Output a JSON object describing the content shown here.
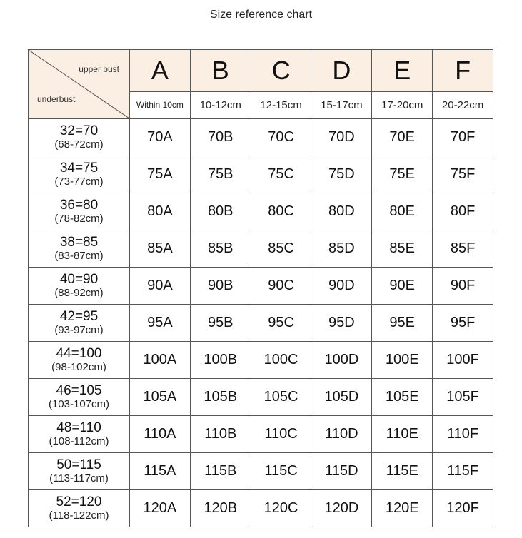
{
  "title": "Size reference chart",
  "corner": {
    "upper_label": "upper bust",
    "under_label": "underbust"
  },
  "columns": [
    {
      "letter": "A",
      "range": "Within 10cm"
    },
    {
      "letter": "B",
      "range": "10-12cm"
    },
    {
      "letter": "C",
      "range": "12-15cm"
    },
    {
      "letter": "D",
      "range": "15-17cm"
    },
    {
      "letter": "E",
      "range": "17-20cm"
    },
    {
      "letter": "F",
      "range": "20-22cm"
    }
  ],
  "rows": [
    {
      "size": "32=70",
      "range": "(68-72cm)",
      "cells": [
        "70A",
        "70B",
        "70C",
        "70D",
        "70E",
        "70F"
      ]
    },
    {
      "size": "34=75",
      "range": "(73-77cm)",
      "cells": [
        "75A",
        "75B",
        "75C",
        "75D",
        "75E",
        "75F"
      ]
    },
    {
      "size": "36=80",
      "range": "(78-82cm)",
      "cells": [
        "80A",
        "80B",
        "80C",
        "80D",
        "80E",
        "80F"
      ]
    },
    {
      "size": "38=85",
      "range": "(83-87cm)",
      "cells": [
        "85A",
        "85B",
        "85C",
        "85D",
        "85E",
        "85F"
      ]
    },
    {
      "size": "40=90",
      "range": "(88-92cm)",
      "cells": [
        "90A",
        "90B",
        "90C",
        "90D",
        "90E",
        "90F"
      ]
    },
    {
      "size": "42=95",
      "range": "(93-97cm)",
      "cells": [
        "95A",
        "95B",
        "95C",
        "95D",
        "95E",
        "95F"
      ]
    },
    {
      "size": "44=100",
      "range": "(98-102cm)",
      "cells": [
        "100A",
        "100B",
        "100C",
        "100D",
        "100E",
        "100F"
      ]
    },
    {
      "size": "46=105",
      "range": "(103-107cm)",
      "cells": [
        "105A",
        "105B",
        "105C",
        "105D",
        "105E",
        "105F"
      ]
    },
    {
      "size": "48=110",
      "range": "(108-112cm)",
      "cells": [
        "110A",
        "110B",
        "110C",
        "110D",
        "110E",
        "110F"
      ]
    },
    {
      "size": "50=115",
      "range": "(113-117cm)",
      "cells": [
        "115A",
        "115B",
        "115C",
        "115D",
        "115E",
        "115F"
      ]
    },
    {
      "size": "52=120",
      "range": "(118-122cm)",
      "cells": [
        "120A",
        "120B",
        "120C",
        "120D",
        "120E",
        "120F"
      ]
    }
  ],
  "colors": {
    "header_bg": "#fbeee2",
    "grid": "#555555"
  }
}
